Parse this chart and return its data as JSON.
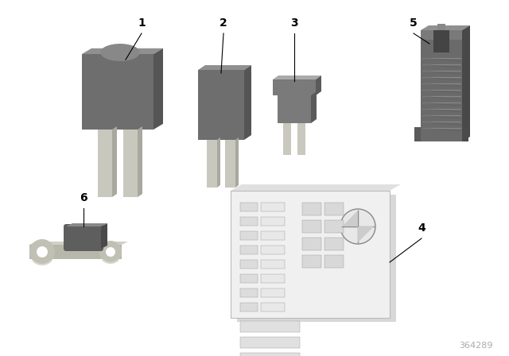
{
  "background_color": "#ffffff",
  "part_number": "364289",
  "part_num_color": "#aaaaaa",
  "fuse_dark": "#666666",
  "fuse_mid": "#777777",
  "fuse_light": "#999999",
  "fuse_blade": "#c8c8be",
  "fuse_blade_shadow": "#a8a89e",
  "card_bg": "#f2f2f2",
  "card_border": "#cccccc",
  "puller_dark": "#555555",
  "puller_mid": "#6a6a6a",
  "puller_light": "#888888"
}
